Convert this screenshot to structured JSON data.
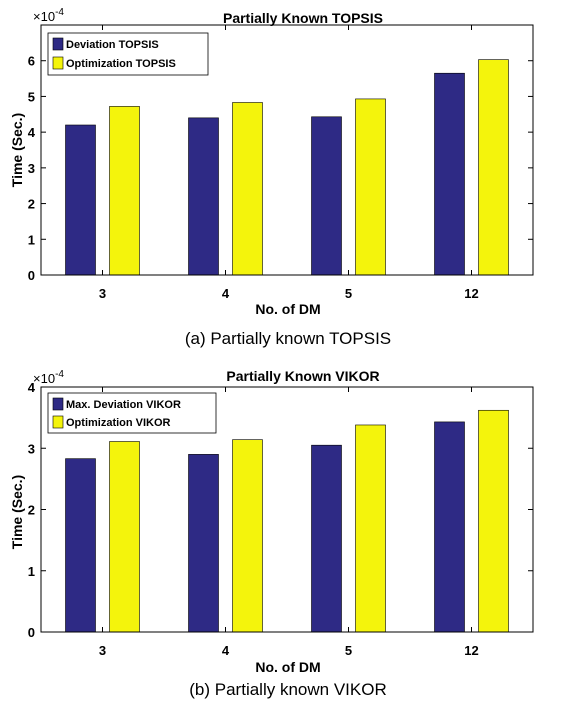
{
  "chart_data": [
    {
      "type": "bar",
      "title": "Partially Known TOPSIS",
      "caption": "(a) Partially known TOPSIS",
      "xlabel": "No. of DM",
      "ylabel": "Time (Sec.)",
      "exponent_label": "×10",
      "exponent_power": "-4",
      "categories": [
        "3",
        "4",
        "5",
        "12"
      ],
      "ylim": [
        0,
        7
      ],
      "yticks": [
        0,
        1,
        2,
        3,
        4,
        5,
        6
      ],
      "grid": false,
      "legend_position": "top-left",
      "series": [
        {
          "name": "Deviation TOPSIS",
          "color": "#2e2a85",
          "values": [
            4.2,
            4.4,
            4.43,
            5.65
          ]
        },
        {
          "name": "Optimization TOPSIS",
          "color": "#f4f40c",
          "values": [
            4.72,
            4.83,
            4.93,
            6.03
          ]
        }
      ]
    },
    {
      "type": "bar",
      "title": "Partially Known VIKOR",
      "caption": "(b) Partially known VIKOR",
      "xlabel": "No. of DM",
      "ylabel": "Time (Sec.)",
      "exponent_label": "×10",
      "exponent_power": "-4",
      "categories": [
        "3",
        "4",
        "5",
        "12"
      ],
      "ylim": [
        0,
        4
      ],
      "yticks": [
        0,
        1,
        2,
        3,
        4
      ],
      "grid": false,
      "legend_position": "top-left",
      "series": [
        {
          "name": "Max. Deviation VIKOR",
          "color": "#2e2a85",
          "values": [
            2.83,
            2.9,
            3.05,
            3.43
          ]
        },
        {
          "name": "Optimization VIKOR",
          "color": "#f4f40c",
          "values": [
            3.11,
            3.14,
            3.38,
            3.62
          ]
        }
      ]
    }
  ]
}
